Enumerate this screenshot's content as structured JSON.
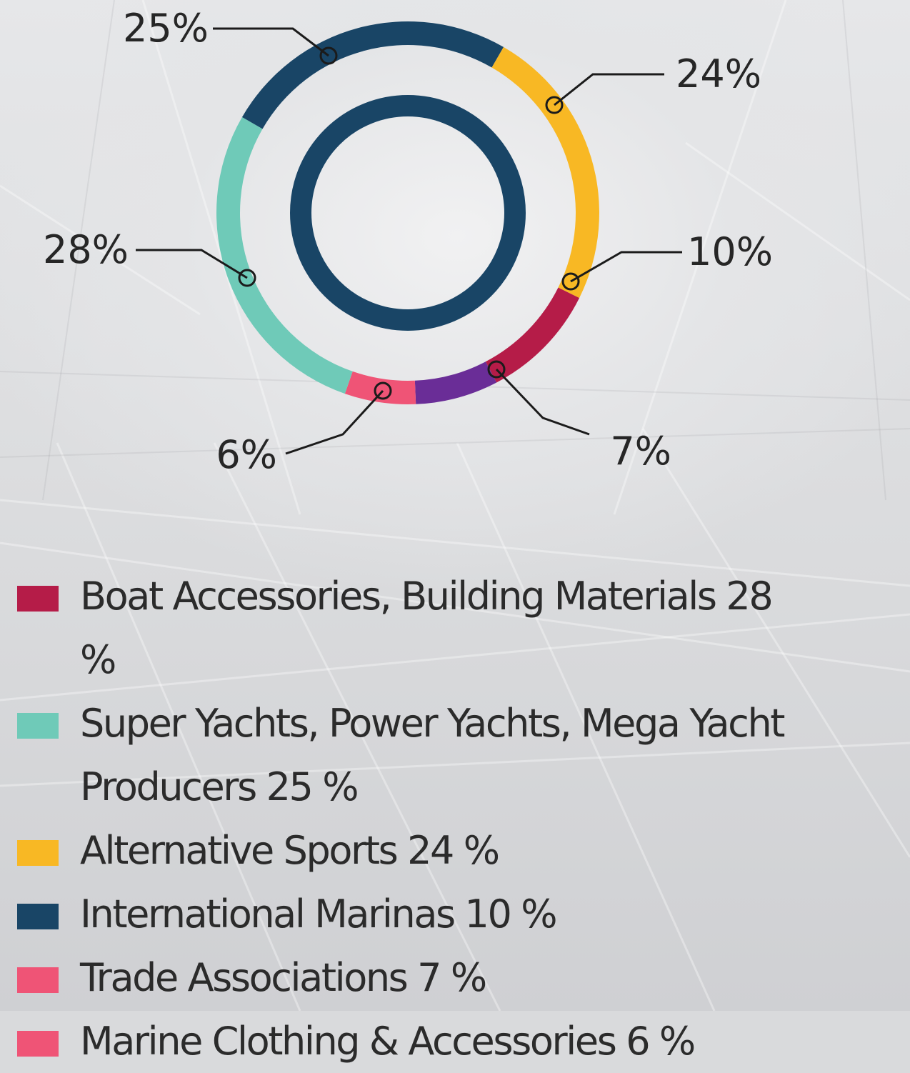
{
  "colors": {
    "crimson": "#b51c48",
    "teal": "#6fcab8",
    "gold": "#f8b824",
    "navy": "#194566",
    "purple": "#6a2d97",
    "pink": "#ef5476"
  },
  "chart_data": {
    "type": "donut",
    "slices": [
      {
        "label": "25%",
        "value": 25,
        "color": "#194566"
      },
      {
        "label": "24%",
        "value": 24,
        "color": "#f8b824"
      },
      {
        "label": "10%",
        "value": 10,
        "color": "#b51c48"
      },
      {
        "label": "7%",
        "value": 7,
        "color": "#6a2d97"
      },
      {
        "label": "6%",
        "value": 6,
        "color": "#ef5476"
      },
      {
        "label": "28%",
        "value": 28,
        "color": "#6fcab8"
      }
    ],
    "inner_ring_color": "#194566"
  },
  "legend": [
    {
      "text": "Boat Accessories, Building Materials 28 %",
      "color": "#b51c48"
    },
    {
      "text": "Super Yachts, Power Yachts, Mega Yacht Producers 25 %",
      "color": "#6fcab8"
    },
    {
      "text": "Alternative Sports 24 %",
      "color": "#f8b824"
    },
    {
      "text": "International Marinas 10 %",
      "color": "#194566"
    },
    {
      "text": "Trade Associations 7 %",
      "color": "#ef5476"
    },
    {
      "text": "Marine Clothing & Accessories 6 %",
      "color": "#ef5476"
    }
  ]
}
